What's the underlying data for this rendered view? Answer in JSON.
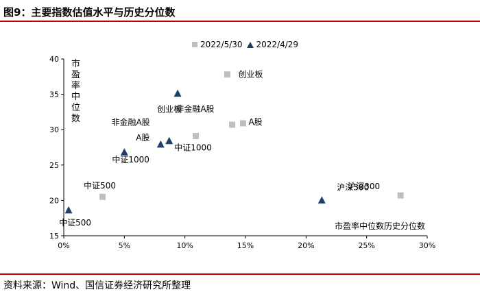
{
  "figure": {
    "title": "图9：主要指数估值水平与历史分位数",
    "source": "资料来源：Wind、国信证券经济研究所整理"
  },
  "chart_data": {
    "type": "scatter",
    "xlabel": "市盈率中位数历史分位数",
    "ylabel": "市盈率中位数",
    "xlim": [
      0,
      0.3
    ],
    "ylim": [
      15,
      40
    ],
    "x_ticks": [
      0,
      0.05,
      0.1,
      0.15,
      0.2,
      0.25,
      0.3
    ],
    "x_tick_labels": [
      "0%",
      "5%",
      "10%",
      "15%",
      "20%",
      "25%",
      "30%"
    ],
    "y_ticks": [
      15,
      20,
      25,
      30,
      35,
      40
    ],
    "y_tick_labels": [
      "15",
      "20",
      "25",
      "30",
      "35",
      "40"
    ],
    "legend_position": "top",
    "series": [
      {
        "name": "2022/5/30",
        "marker": "square",
        "color": "#bfbfbf",
        "points": [
          {
            "label": "创业板",
            "x": 0.135,
            "y": 37.8
          },
          {
            "label": "非金融A股",
            "x": 0.139,
            "y": 30.7
          },
          {
            "label": "A股",
            "x": 0.148,
            "y": 30.9
          },
          {
            "label": "中证1000",
            "x": 0.109,
            "y": 29.1
          },
          {
            "label": "中证500",
            "x": 0.032,
            "y": 20.5
          },
          {
            "label": "沪深300",
            "x": 0.278,
            "y": 20.7
          }
        ]
      },
      {
        "name": "2022/4/29",
        "marker": "triangle",
        "color": "#1f3f6b",
        "points": [
          {
            "label": "创业板",
            "x": 0.094,
            "y": 35.1
          },
          {
            "label": "非金融A股",
            "x": 0.087,
            "y": 28.4
          },
          {
            "label": "A股",
            "x": 0.08,
            "y": 27.9
          },
          {
            "label": "中证1000",
            "x": 0.05,
            "y": 26.8
          },
          {
            "label": "中证500",
            "x": 0.004,
            "y": 18.6
          },
          {
            "label": "沪深300",
            "x": 0.213,
            "y": 20.0
          }
        ]
      }
    ]
  }
}
